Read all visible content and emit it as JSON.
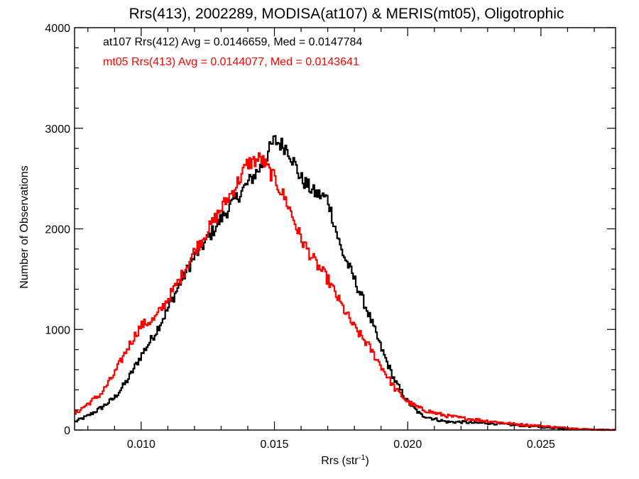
{
  "chart_data": {
    "type": "line",
    "title": "Rrs(413), 2002289, MODISA(at107) & MERIS(mt05), Oligotrophic",
    "xlabel": "Rrs (str",
    "xlabel_sup": "-1",
    "xlabel_close": ")",
    "ylabel": "Number of Observations",
    "xlim": [
      0.0075,
      0.0278
    ],
    "ylim": [
      0,
      4000
    ],
    "xticks": [
      {
        "value": 0.01,
        "label": "0.010"
      },
      {
        "value": 0.015,
        "label": "0.015"
      },
      {
        "value": 0.02,
        "label": "0.020"
      },
      {
        "value": 0.025,
        "label": "0.025"
      }
    ],
    "yticks": [
      {
        "value": 0,
        "label": "0"
      },
      {
        "value": 1000,
        "label": "1000"
      },
      {
        "value": 2000,
        "label": "2000"
      },
      {
        "value": 3000,
        "label": "3000"
      },
      {
        "value": 4000,
        "label": "4000"
      }
    ],
    "series": [
      {
        "name": "at107",
        "label": "at107 Rrs(412) Avg = 0.0146659, Med = 0.0147784",
        "color": "#000000",
        "points": [
          [
            0.0075,
            80
          ],
          [
            0.008,
            140
          ],
          [
            0.0085,
            220
          ],
          [
            0.009,
            320
          ],
          [
            0.0095,
            500
          ],
          [
            0.01,
            740
          ],
          [
            0.0105,
            950
          ],
          [
            0.011,
            1200
          ],
          [
            0.0115,
            1480
          ],
          [
            0.012,
            1720
          ],
          [
            0.0125,
            1900
          ],
          [
            0.013,
            2100
          ],
          [
            0.0135,
            2280
          ],
          [
            0.014,
            2450
          ],
          [
            0.0145,
            2620
          ],
          [
            0.015,
            2880
          ],
          [
            0.0155,
            2800
          ],
          [
            0.016,
            2500
          ],
          [
            0.0165,
            2360
          ],
          [
            0.017,
            2300
          ],
          [
            0.0175,
            1800
          ],
          [
            0.018,
            1500
          ],
          [
            0.0185,
            1180
          ],
          [
            0.019,
            820
          ],
          [
            0.0195,
            500
          ],
          [
            0.02,
            280
          ],
          [
            0.0205,
            150
          ],
          [
            0.021,
            110
          ],
          [
            0.0215,
            80
          ],
          [
            0.022,
            80
          ],
          [
            0.0225,
            70
          ],
          [
            0.023,
            70
          ],
          [
            0.0235,
            60
          ],
          [
            0.024,
            50
          ],
          [
            0.0245,
            40
          ],
          [
            0.025,
            30
          ],
          [
            0.0255,
            20
          ],
          [
            0.026,
            15
          ],
          [
            0.0265,
            10
          ],
          [
            0.027,
            5
          ],
          [
            0.0278,
            0
          ]
        ]
      },
      {
        "name": "mt05",
        "label": "mt05 Rrs(413) Avg = 0.0144077, Med = 0.0143641",
        "color": "#ff0000",
        "points": [
          [
            0.0075,
            160
          ],
          [
            0.008,
            260
          ],
          [
            0.0085,
            360
          ],
          [
            0.009,
            560
          ],
          [
            0.0095,
            820
          ],
          [
            0.01,
            1040
          ],
          [
            0.0105,
            1100
          ],
          [
            0.011,
            1300
          ],
          [
            0.0115,
            1520
          ],
          [
            0.012,
            1780
          ],
          [
            0.0125,
            1980
          ],
          [
            0.013,
            2200
          ],
          [
            0.0135,
            2400
          ],
          [
            0.014,
            2650
          ],
          [
            0.0145,
            2700
          ],
          [
            0.015,
            2500
          ],
          [
            0.0155,
            2250
          ],
          [
            0.016,
            1900
          ],
          [
            0.0165,
            1680
          ],
          [
            0.017,
            1500
          ],
          [
            0.0175,
            1250
          ],
          [
            0.018,
            1020
          ],
          [
            0.0185,
            850
          ],
          [
            0.019,
            640
          ],
          [
            0.0195,
            420
          ],
          [
            0.02,
            280
          ],
          [
            0.0205,
            210
          ],
          [
            0.021,
            170
          ],
          [
            0.0215,
            140
          ],
          [
            0.022,
            120
          ],
          [
            0.0225,
            105
          ],
          [
            0.023,
            90
          ],
          [
            0.0235,
            75
          ],
          [
            0.024,
            60
          ],
          [
            0.0245,
            50
          ],
          [
            0.025,
            40
          ],
          [
            0.0255,
            30
          ],
          [
            0.026,
            20
          ],
          [
            0.0265,
            12
          ],
          [
            0.027,
            6
          ],
          [
            0.0278,
            0
          ]
        ]
      }
    ],
    "grid": false,
    "legend": "top-left"
  }
}
